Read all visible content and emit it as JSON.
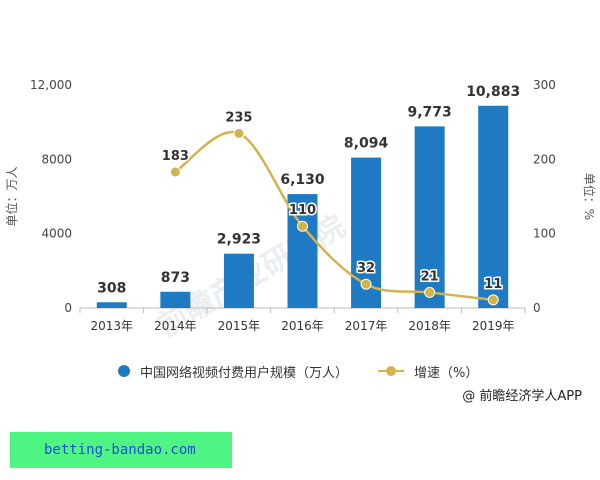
{
  "chart_data": {
    "type": "bar+line",
    "categories": [
      "2013年",
      "2014年",
      "2015年",
      "2016年",
      "2017年",
      "2018年",
      "2019年"
    ],
    "series": [
      {
        "name": "中国网络视频付费用户规模（万人）",
        "type": "bar",
        "axis": "left",
        "color": "#1f7ac4",
        "values": [
          308,
          873,
          2923,
          6130,
          8094,
          9773,
          10883
        ],
        "labels": [
          "308",
          "873",
          "2,923",
          "6,130",
          "8,094",
          "9,773",
          "10,883"
        ]
      },
      {
        "name": "增速（%）",
        "type": "line",
        "axis": "right",
        "color": "#d4b44a",
        "values": [
          null,
          183,
          235,
          110,
          32,
          21,
          11
        ],
        "labels": [
          "",
          "183",
          "235",
          "110",
          "32",
          "21",
          "11"
        ]
      }
    ],
    "y_left": {
      "label": "单位：万人",
      "ylim": [
        0,
        12000
      ],
      "ticks": [
        0,
        4000,
        8000,
        12000
      ],
      "tick_labels": [
        "0",
        "4000",
        "8000",
        "12,000"
      ]
    },
    "y_right": {
      "label": "单位：%",
      "ylim": [
        0,
        300
      ],
      "ticks": [
        0,
        100,
        200,
        300
      ],
      "tick_labels": [
        "0",
        "100",
        "200",
        "300"
      ]
    },
    "grid": false,
    "legend_position": "bottom"
  },
  "watermark": "前瞻产业研究院",
  "credit": "@ 前瞻经济学人APP",
  "banner": "betting-bandao.com"
}
